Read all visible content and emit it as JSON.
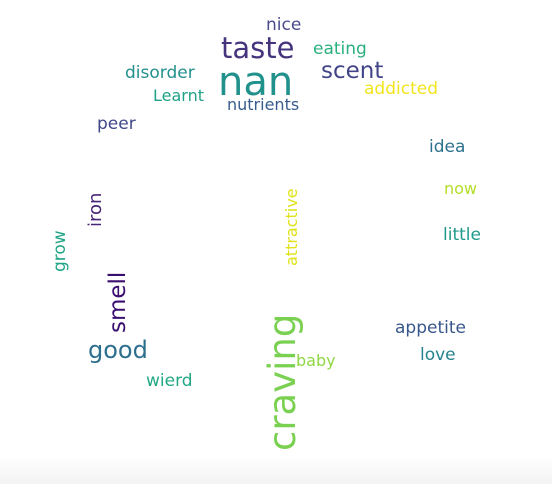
{
  "words": [
    {
      "text": "nice",
      "color": "#4a4a8c"
    },
    {
      "text": "taste",
      "color": "#46337e"
    },
    {
      "text": "eating",
      "color": "#2bb07f"
    },
    {
      "text": "disorder",
      "color": "#21908d"
    },
    {
      "text": "nan",
      "color": "#21918c"
    },
    {
      "text": "scent",
      "color": "#414487"
    },
    {
      "text": "Learnt",
      "color": "#1fa187"
    },
    {
      "text": "nutrients",
      "color": "#365c8d"
    },
    {
      "text": "addicted",
      "color": "#f1e51d"
    },
    {
      "text": "peer",
      "color": "#3f4788"
    },
    {
      "text": "idea",
      "color": "#2c728e"
    },
    {
      "text": "now",
      "color": "#b5de2b"
    },
    {
      "text": "iron",
      "color": "#482475"
    },
    {
      "text": "attractive",
      "color": "#dfe318"
    },
    {
      "text": "grow",
      "color": "#20a486"
    },
    {
      "text": "little",
      "color": "#1f9a8a"
    },
    {
      "text": "smell",
      "color": "#3b0f70"
    },
    {
      "text": "good",
      "color": "#2d6f8e"
    },
    {
      "text": "craving",
      "color": "#7ad151"
    },
    {
      "text": "appetite",
      "color": "#39568c"
    },
    {
      "text": "love",
      "color": "#26828e"
    },
    {
      "text": "baby",
      "color": "#8fd744"
    },
    {
      "text": "wierd",
      "color": "#22a884"
    }
  ]
}
